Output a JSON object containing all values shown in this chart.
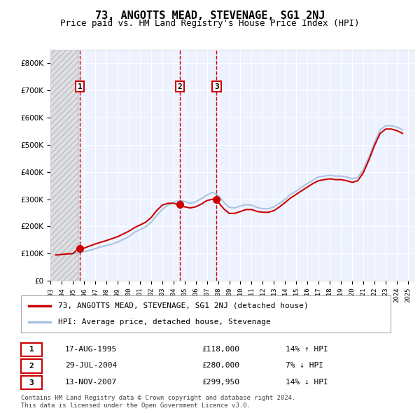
{
  "title": "73, ANGOTTS MEAD, STEVENAGE, SG1 2NJ",
  "subtitle": "Price paid vs. HM Land Registry's House Price Index (HPI)",
  "footnote1": "Contains HM Land Registry data © Crown copyright and database right 2024.",
  "footnote2": "This data is licensed under the Open Government Licence v3.0.",
  "legend_entry1": "73, ANGOTTS MEAD, STEVENAGE, SG1 2NJ (detached house)",
  "legend_entry2": "HPI: Average price, detached house, Stevenage",
  "table": [
    {
      "num": "1",
      "date": "17-AUG-1995",
      "price": "£118,000",
      "hpi": "14% ↑ HPI"
    },
    {
      "num": "2",
      "date": "29-JUL-2004",
      "price": "£280,000",
      "hpi": "7% ↓ HPI"
    },
    {
      "num": "3",
      "date": "13-NOV-2007",
      "price": "£299,950",
      "hpi": "14% ↓ HPI"
    }
  ],
  "transactions": [
    {
      "year": 1995.63,
      "price": 118000,
      "label": "1"
    },
    {
      "year": 2004.58,
      "price": 280000,
      "label": "2"
    },
    {
      "year": 2007.87,
      "price": 299950,
      "label": "3"
    }
  ],
  "hpi_data": {
    "years": [
      1993.5,
      1994.0,
      1994.5,
      1995.0,
      1995.5,
      1996.0,
      1996.5,
      1997.0,
      1997.5,
      1998.0,
      1998.5,
      1999.0,
      1999.5,
      2000.0,
      2000.5,
      2001.0,
      2001.5,
      2002.0,
      2002.5,
      2003.0,
      2003.5,
      2004.0,
      2004.5,
      2005.0,
      2005.5,
      2006.0,
      2006.5,
      2007.0,
      2007.5,
      2008.0,
      2008.5,
      2009.0,
      2009.5,
      2010.0,
      2010.5,
      2011.0,
      2011.5,
      2012.0,
      2012.5,
      2013.0,
      2013.5,
      2014.0,
      2014.5,
      2015.0,
      2015.5,
      2016.0,
      2016.5,
      2017.0,
      2017.5,
      2018.0,
      2018.5,
      2019.0,
      2019.5,
      2020.0,
      2020.5,
      2021.0,
      2021.5,
      2022.0,
      2022.5,
      2023.0,
      2023.5,
      2024.0,
      2024.5
    ],
    "values": [
      95000,
      97000,
      98000,
      100000,
      103000,
      107000,
      112000,
      118000,
      125000,
      130000,
      135000,
      142000,
      152000,
      162000,
      178000,
      188000,
      198000,
      215000,
      240000,
      262000,
      278000,
      288000,
      295000,
      292000,
      285000,
      290000,
      302000,
      315000,
      325000,
      315000,
      290000,
      270000,
      268000,
      275000,
      280000,
      278000,
      270000,
      265000,
      265000,
      272000,
      285000,
      300000,
      318000,
      330000,
      345000,
      358000,
      370000,
      382000,
      385000,
      388000,
      385000,
      385000,
      382000,
      375000,
      380000,
      410000,
      455000,
      510000,
      555000,
      570000,
      570000,
      565000,
      555000
    ]
  },
  "price_paid_data": {
    "years": [
      1993.5,
      1994.0,
      1994.5,
      1995.0,
      1995.5,
      1996.0,
      1996.5,
      1997.0,
      1997.5,
      1998.0,
      1998.5,
      1999.0,
      1999.5,
      2000.0,
      2000.5,
      2001.0,
      2001.5,
      2002.0,
      2002.5,
      2003.0,
      2003.5,
      2004.0,
      2004.5,
      2005.0,
      2005.5,
      2006.0,
      2006.5,
      2007.0,
      2007.5,
      2008.0,
      2008.5,
      2009.0,
      2009.5,
      2010.0,
      2010.5,
      2011.0,
      2011.5,
      2012.0,
      2012.5,
      2013.0,
      2013.5,
      2014.0,
      2014.5,
      2015.0,
      2015.5,
      2016.0,
      2016.5,
      2017.0,
      2017.5,
      2018.0,
      2018.5,
      2019.0,
      2019.5,
      2020.0,
      2020.5,
      2021.0,
      2021.5,
      2022.0,
      2022.5,
      2023.0,
      2023.5,
      2024.0,
      2024.5
    ],
    "values": [
      95000,
      97000,
      99000,
      100000,
      118000,
      120000,
      128000,
      135000,
      142000,
      148000,
      155000,
      162000,
      172000,
      182000,
      195000,
      205000,
      215000,
      232000,
      258000,
      278000,
      285000,
      285000,
      280000,
      272000,
      268000,
      272000,
      282000,
      295000,
      299950,
      290000,
      265000,
      248000,
      248000,
      255000,
      262000,
      262000,
      255000,
      252000,
      252000,
      258000,
      272000,
      288000,
      305000,
      318000,
      332000,
      345000,
      358000,
      368000,
      372000,
      375000,
      372000,
      372000,
      368000,
      362000,
      368000,
      398000,
      445000,
      498000,
      542000,
      558000,
      558000,
      552000,
      542000
    ]
  },
  "hatch_end_year": 1995.5,
  "xmin": 1993.0,
  "xmax": 2025.5,
  "ymin": 0,
  "ymax": 850000,
  "yticks": [
    0,
    100000,
    200000,
    300000,
    400000,
    500000,
    600000,
    700000,
    800000
  ],
  "ytick_labels": [
    "£0",
    "£100K",
    "£200K",
    "£300K",
    "£400K",
    "£500K",
    "£600K",
    "£700K",
    "£800K"
  ],
  "xticks": [
    1993,
    1994,
    1995,
    1996,
    1997,
    1998,
    1999,
    2000,
    2001,
    2002,
    2003,
    2004,
    2005,
    2006,
    2007,
    2008,
    2009,
    2010,
    2011,
    2012,
    2013,
    2014,
    2015,
    2016,
    2017,
    2018,
    2019,
    2020,
    2021,
    2022,
    2023,
    2024,
    2025
  ],
  "bg_color": "#ffffff",
  "plot_bg_color": "#eef2ff",
  "grid_color": "#ffffff",
  "hpi_color": "#aac4e0",
  "price_color": "#cc0000",
  "marker_color": "#cc0000",
  "hatch_color": "#d0d0d0",
  "dashed_line_color": "#cc0000",
  "box_color": "#cc0000"
}
